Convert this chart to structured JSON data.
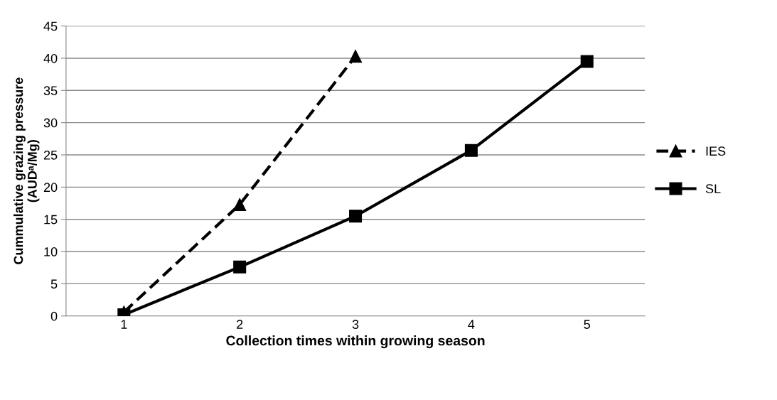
{
  "chart_data": {
    "type": "line",
    "xlabel": "Collection times within growing season",
    "ylabel": "Cummulative grazing pressure\n(AUDᵃ/Mg)",
    "categories": [
      "1",
      "2",
      "3",
      "4",
      "5"
    ],
    "series": [
      {
        "name": "IES",
        "color": "#000000",
        "marker": "triangle",
        "line_style": "dashed",
        "values": [
          0.6,
          17.3,
          40.3,
          null,
          null
        ]
      },
      {
        "name": "SL",
        "color": "#000000",
        "marker": "square",
        "line_style": "solid",
        "values": [
          0.2,
          7.6,
          15.5,
          25.7,
          39.5
        ]
      }
    ],
    "ylim": [
      0,
      45
    ],
    "yticks": [
      0,
      5,
      10,
      15,
      20,
      25,
      30,
      35,
      40,
      45
    ],
    "grid": "y",
    "legend": "right"
  }
}
